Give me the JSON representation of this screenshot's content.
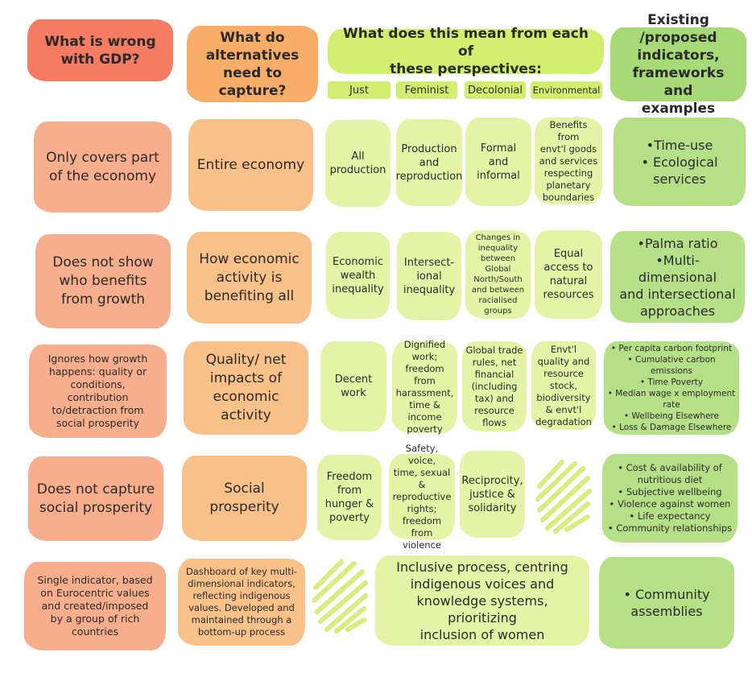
{
  "headers": {
    "col1": "What is wrong\nwith GDP?",
    "col2": "What do\nalternatives\nneed to capture?",
    "col3": "What does this mean from each of\nthese perspectives:",
    "col4": "Existing /proposed\nindicators,\nframeworks and\nexamples",
    "perspectives": [
      "Just",
      "Feminist",
      "Decolonial",
      "Environmental"
    ]
  },
  "rows": [
    {
      "problem": "Only covers part\nof the economy",
      "capture": "Entire economy",
      "just": "All\nproduction",
      "feminist": "Production\nand\nreproduction",
      "decolonial": "Formal and\ninformal",
      "environmental": "Benefits from\nenvt'l goods\nand services\nrespecting\nplanetary\nboundaries",
      "indicators": "•Time-use\n• Ecological\nservices"
    },
    {
      "problem": "Does not show\nwho benefits\nfrom growth",
      "capture": "How economic\nactivity is\nbenefiting all",
      "just": "Economic\nwealth\ninequality",
      "feminist": "Intersect-\nional\ninequality",
      "decolonial": "Changes in\ninequality\nbetween Global\nNorth/South\nand between\nracialised\ngroups",
      "environmental": "Equal\naccess to\nnatural\nresources",
      "indicators": "•Palma ratio\n•Multi-dimensional\nand intersectional\napproaches"
    },
    {
      "problem": "Ignores how growth\nhappens: quality or\nconditions,\ncontribution\nto/detraction from\nsocial prosperity",
      "capture": "Quality/ net\nimpacts of\neconomic\nactivity",
      "just": "Decent\nwork",
      "feminist": "Dignified\nwork;\nfreedom from\nharassment,\ntime &\nincome\npoverty",
      "decolonial": "Global trade\nrules, net\nfinancial\n(including\ntax) and\nresource\nflows",
      "environmental": "Envt'l\nquality and\nresource\nstock,\nbiodiversity\n& envt'l\ndegradation",
      "indicators": "• Per capita carbon footprint\n• Cumulative carbon emissions\n• Time Poverty\n• Median wage x employment\nrate\n• Wellbeing Elsewhere\n• Loss & Damage Elsewhere"
    },
    {
      "problem": "Does not capture\nsocial prosperity",
      "capture": "Social\nprosperity",
      "just": "Freedom\nfrom\nhunger &\npoverty",
      "feminist": "Safety, voice,\ntime, sexual &\nreproductive\nrights;\nfreedom from\nviolence",
      "decolonial": "Reciprocity,\njustice &\nsolidarity",
      "environmental": "",
      "indicators": "• Cost & availability of\nnutritious diet\n• Subjective wellbeing\n• Violence against women\n• Life expectancy\n• Community relationships"
    },
    {
      "problem": "Single indicator, based\non Eurocentric values\nand created/imposed\nby a group of rich\ncountries",
      "capture": "Dashboard of key multi-\ndimensional indicators,\nreflecting indigenous\nvalues. Developed and\nmaintained through a\nbottom-up process",
      "merged": "Inclusive process, centring\nindigenous voices and\nknowledge systems, prioritizing\ninclusion of women",
      "indicators": "• Community\nassemblies"
    }
  ],
  "colors": {
    "header_red": "#f57c62",
    "header_orange": "#f8ad68",
    "header_lime": "#d2ee6e",
    "header_green": "#a7da76",
    "row_peach": "#f7ae8c",
    "row_apricot": "#f8c189",
    "row_lime": "#e5f3a6",
    "row_green": "#b5e087"
  }
}
